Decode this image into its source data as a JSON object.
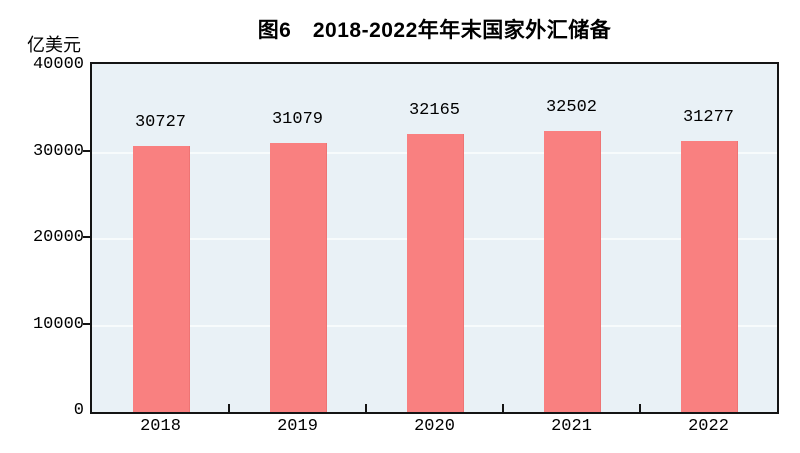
{
  "chart_data": {
    "type": "bar",
    "title": "图6　2018-2022年年末国家外汇储备",
    "unit_label": "亿美元",
    "categories": [
      "2018",
      "2019",
      "2020",
      "2021",
      "2022"
    ],
    "values": [
      30727,
      31079,
      32165,
      32502,
      31277
    ],
    "value_labels": [
      "30727",
      "31079",
      "32165",
      "32502",
      "31277"
    ],
    "xlabel": "",
    "ylabel": "亿美元",
    "ylim": [
      0,
      40000
    ],
    "yticks": [
      0,
      10000,
      20000,
      30000,
      40000
    ],
    "ytick_labels": [
      "0",
      "10000",
      "20000",
      "30000",
      "40000"
    ],
    "gridline_values": [
      10000,
      20000,
      30000
    ],
    "grid": true,
    "legend": "none",
    "colors": {
      "bar_fill": "#f98080",
      "bar_edge": "#ee7474",
      "plot_background": "#e9f1f6",
      "gridline": "#f7fbfc",
      "axis": "#141414",
      "text": "#000000",
      "page_background": "#ffffff"
    }
  }
}
